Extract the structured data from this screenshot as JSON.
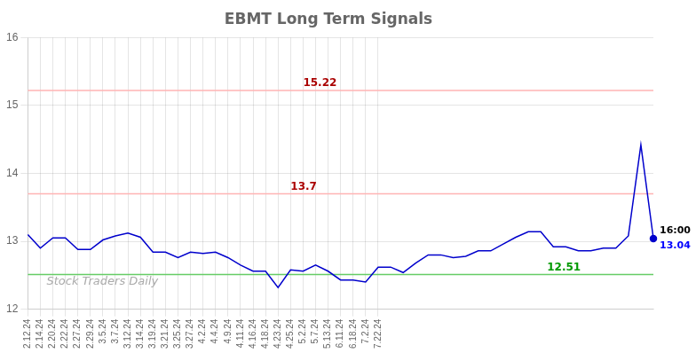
{
  "chart_data": {
    "type": "line",
    "title": "EBMT Long Term Signals",
    "categories": [
      "2.12.24",
      "2.14.24",
      "2.20.24",
      "2.22.24",
      "2.27.24",
      "2.29.24",
      "3.5.24",
      "3.7.24",
      "3.12.24",
      "3.14.24",
      "3.19.24",
      "3.21.24",
      "3.25.24",
      "3.27.24",
      "4.2.24",
      "4.4.24",
      "4.9.24",
      "4.11.24",
      "4.16.24",
      "4.18.24",
      "4.23.24",
      "4.25.24",
      "5.2.24",
      "5.7.24",
      "5.13.24",
      "6.11.24",
      "6.18.24",
      "7.2.24",
      "7.22.24",
      null,
      null,
      null,
      null,
      null,
      null,
      null,
      null,
      null,
      null,
      null,
      null,
      null,
      null,
      null,
      null,
      null,
      null,
      null,
      null,
      null,
      null
    ],
    "values": [
      13.1,
      12.9,
      13.05,
      13.05,
      12.88,
      12.88,
      13.02,
      13.08,
      13.12,
      13.06,
      12.84,
      12.84,
      12.76,
      12.84,
      12.82,
      12.84,
      12.76,
      12.65,
      12.56,
      12.56,
      12.32,
      12.58,
      12.56,
      12.65,
      12.56,
      12.43,
      12.43,
      12.4,
      12.62,
      12.62,
      12.54,
      12.68,
      12.8,
      12.8,
      12.76,
      12.78,
      12.86,
      12.86,
      12.96,
      13.06,
      13.14,
      13.14,
      12.92,
      12.92,
      12.86,
      12.86,
      12.9,
      12.9,
      13.08,
      14.42,
      13.04
    ],
    "color": "#0000cc",
    "ylim": [
      12,
      16
    ],
    "yticks": [
      12,
      13,
      14,
      15,
      16
    ],
    "grid": true,
    "hlines": [
      {
        "y": 15.22,
        "label": "15.22",
        "color": "#ffb3b3",
        "label_color": "#aa0000"
      },
      {
        "y": 13.7,
        "label": "13.7",
        "color": "#ffb3b3",
        "label_color": "#aa0000"
      },
      {
        "y": 12.51,
        "label": "12.51",
        "color": "#66cc66",
        "label_color": "#009900"
      }
    ],
    "end_labels": [
      {
        "text": "16:00",
        "color": "#000000"
      },
      {
        "text": "13.04",
        "color": "#0000ff"
      }
    ],
    "watermark": {
      "text": "Stock Traders Daily",
      "color": "#aaaaaa"
    }
  }
}
